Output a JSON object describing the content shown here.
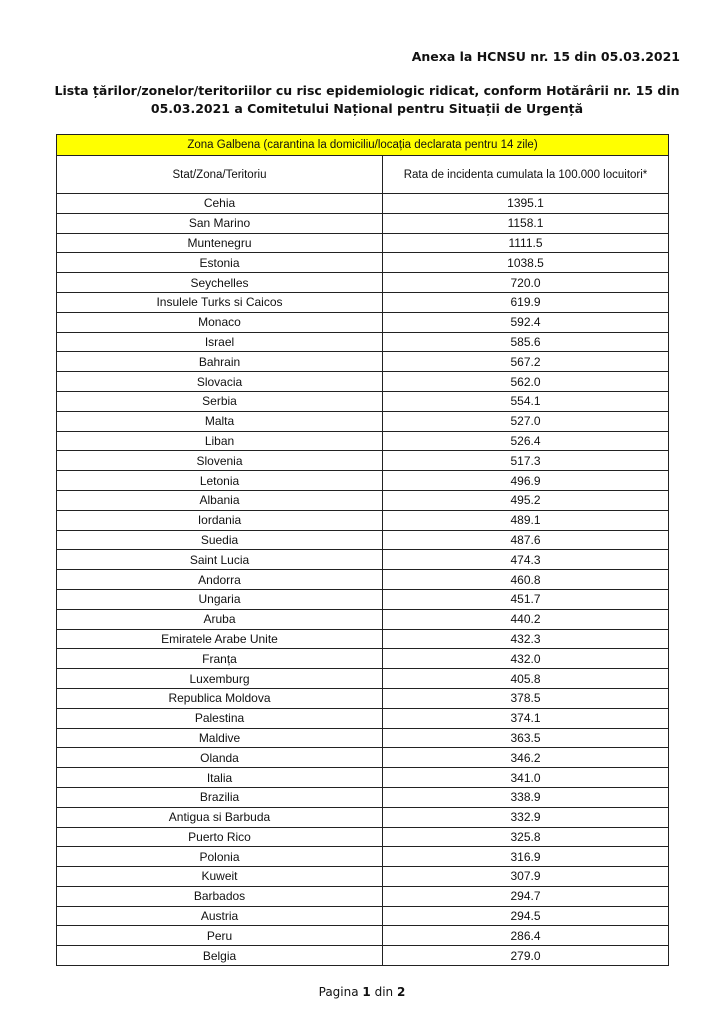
{
  "header": {
    "annex": "Anexa la HCNSU nr. 15 din 05.03.2021"
  },
  "title": {
    "line1": "Lista țărilor/zonelor/teritoriilor cu risc epidemiologic ridicat, conform Hotărârii nr. 15 din",
    "line2": "05.03.2021 a Comitetului Național pentru Situații de Urgență"
  },
  "table": {
    "zone_label": "Zona Galbena (carantina la domiciliu/locația declarata pentru 14 zile)",
    "zone_color": "#ffff00",
    "columns": [
      "Stat/Zona/Teritoriu",
      "Rata de incidenta cumulata la 100.000 locuitori*"
    ],
    "rows": [
      [
        "Cehia",
        "1395.1"
      ],
      [
        "San Marino",
        "1158.1"
      ],
      [
        "Muntenegru",
        "1111.5"
      ],
      [
        "Estonia",
        "1038.5"
      ],
      [
        "Seychelles",
        "720.0"
      ],
      [
        "Insulele Turks si Caicos",
        "619.9"
      ],
      [
        "Monaco",
        "592.4"
      ],
      [
        "Israel",
        "585.6"
      ],
      [
        "Bahrain",
        "567.2"
      ],
      [
        "Slovacia",
        "562.0"
      ],
      [
        "Serbia",
        "554.1"
      ],
      [
        "Malta",
        "527.0"
      ],
      [
        "Liban",
        "526.4"
      ],
      [
        "Slovenia",
        "517.3"
      ],
      [
        "Letonia",
        "496.9"
      ],
      [
        "Albania",
        "495.2"
      ],
      [
        "Iordania",
        "489.1"
      ],
      [
        "Suedia",
        "487.6"
      ],
      [
        "Saint Lucia",
        "474.3"
      ],
      [
        "Andorra",
        "460.8"
      ],
      [
        "Ungaria",
        "451.7"
      ],
      [
        "Aruba",
        "440.2"
      ],
      [
        "Emiratele Arabe Unite",
        "432.3"
      ],
      [
        "Franța",
        "432.0"
      ],
      [
        "Luxemburg",
        "405.8"
      ],
      [
        "Republica Moldova",
        "378.5"
      ],
      [
        "Palestina",
        "374.1"
      ],
      [
        "Maldive",
        "363.5"
      ],
      [
        "Olanda",
        "346.2"
      ],
      [
        "Italia",
        "341.0"
      ],
      [
        "Brazilia",
        "338.9"
      ],
      [
        "Antigua si Barbuda",
        "332.9"
      ],
      [
        "Puerto Rico",
        "325.8"
      ],
      [
        "Polonia",
        "316.9"
      ],
      [
        "Kuweit",
        "307.9"
      ],
      [
        "Barbados",
        "294.7"
      ],
      [
        "Austria",
        "294.5"
      ],
      [
        "Peru",
        "286.4"
      ],
      [
        "Belgia",
        "279.0"
      ]
    ]
  },
  "footer": {
    "prefix": "Pagina",
    "page": "1",
    "middle": "din",
    "total": "2"
  }
}
